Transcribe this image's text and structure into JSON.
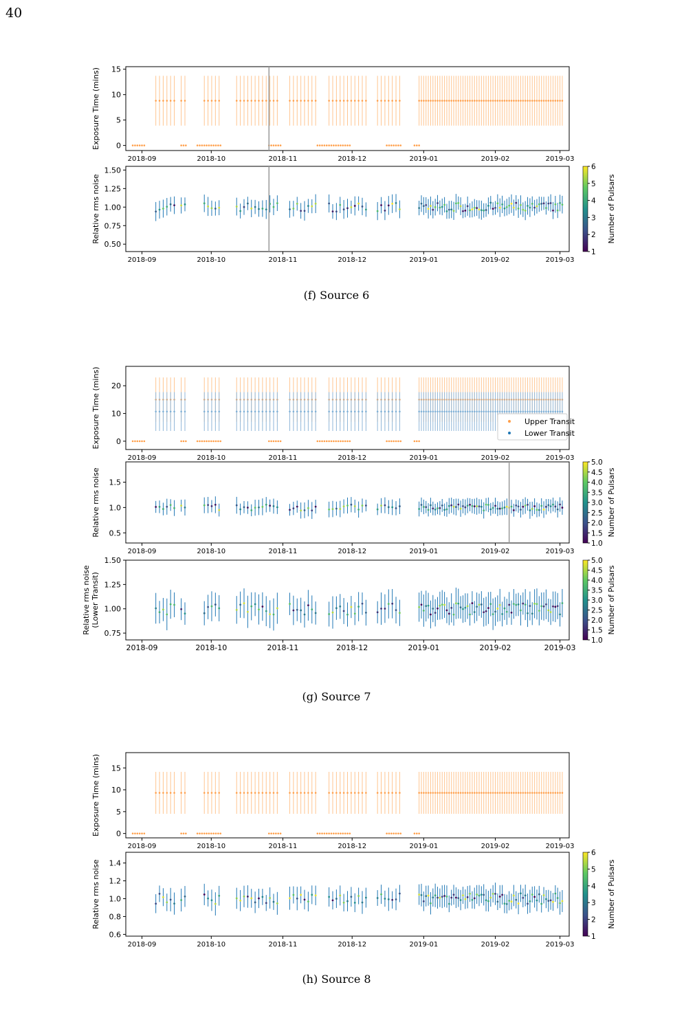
{
  "page": {
    "number": "40"
  },
  "colors": {
    "upper": "#ff9f4a",
    "upper_light": "#ffc590",
    "lower": "#1f77b4",
    "lower_light": "#7fb0d6",
    "axis": "#000000",
    "vline": "#999999"
  },
  "x_ticks": [
    "2018-09",
    "2018-10",
    "2018-11",
    "2018-12",
    "2019-01",
    "2019-02",
    "2019-03"
  ],
  "colorbar_label": "Number of Pulsars",
  "legend": {
    "upper": "Upper Transit",
    "lower": "Lower Transit"
  },
  "figures": [
    {
      "caption": "(f) Source 6",
      "exposure": {
        "ylabel": "Exposure Time (mins)",
        "yticks": [
          "0",
          "5",
          "10",
          "15"
        ],
        "ylim": [
          -1,
          15.5
        ],
        "vlines_days": [
          55,
          261
        ]
      },
      "noise": {
        "ylabel": "Relative rms noise",
        "yticks": [
          "0.50",
          "0.75",
          "1.00",
          "1.25",
          "1.50"
        ],
        "ylim": [
          0.4,
          1.55
        ],
        "colorbar_ticks": [
          "1",
          "2",
          "3",
          "4",
          "5",
          "6"
        ]
      }
    },
    {
      "caption": "(g) Source 7",
      "exposure": {
        "ylabel": "Exposure Time (mins)",
        "yticks": [
          "0",
          "10",
          "20"
        ],
        "ylim": [
          -3,
          27
        ]
      },
      "noise": {
        "ylabel": "Relative rms noise",
        "yticks": [
          "0.5",
          "1.0",
          "1.5"
        ],
        "ylim": [
          0.3,
          1.9
        ],
        "colorbar_ticks": [
          "1.0",
          "1.5",
          "2.0",
          "2.5",
          "3.0",
          "3.5",
          "4.0",
          "4.5",
          "5.0"
        ]
      },
      "noise_lower": {
        "ylabel": "Relative rms noise",
        "ylabel2": "(Lower Transit)",
        "yticks": [
          "0.75",
          "1.00",
          "1.25",
          "1.50"
        ],
        "ylim": [
          0.68,
          1.5
        ],
        "colorbar_ticks": [
          "1.0",
          "1.5",
          "2.0",
          "2.5",
          "3.0",
          "3.5",
          "4.0",
          "4.5",
          "5.0"
        ]
      }
    },
    {
      "caption": "(h) Source 8",
      "exposure": {
        "ylabel": "Exposure Time (mins)",
        "yticks": [
          "0",
          "5",
          "10",
          "15"
        ],
        "ylim": [
          -1,
          18.5
        ],
        "vlines_days": [
          271
        ]
      },
      "noise": {
        "ylabel": "Relative rms noise",
        "yticks": [
          "0.6",
          "0.8",
          "1.0",
          "1.2",
          "1.4"
        ],
        "ylim": [
          0.58,
          1.52
        ],
        "colorbar_ticks": [
          "1",
          "2",
          "3",
          "4",
          "5",
          "6"
        ]
      }
    }
  ]
}
